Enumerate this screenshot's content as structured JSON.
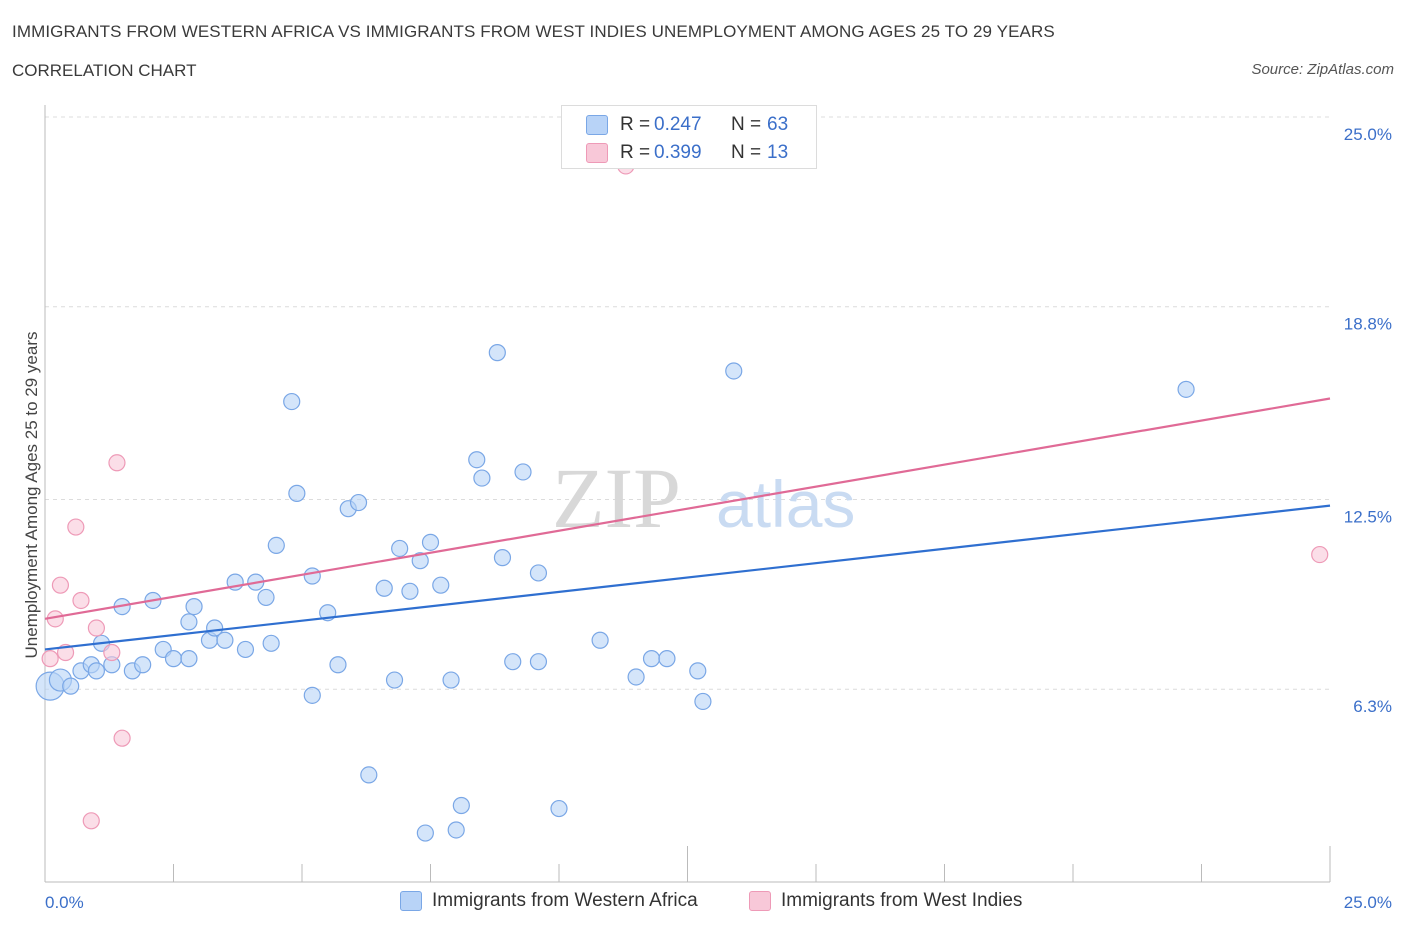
{
  "title": "IMMIGRANTS FROM WESTERN AFRICA VS IMMIGRANTS FROM WEST INDIES UNEMPLOYMENT AMONG AGES 25 TO 29 YEARS",
  "subtitle": "CORRELATION CHART",
  "source": "Source: ZipAtlas.com",
  "watermark": {
    "zip": "ZIP",
    "atlas": "atlas"
  },
  "legend": {
    "r_label": "R =",
    "n_label": "N =",
    "series": [
      {
        "name": "Immigrants from Western Africa",
        "r": "0.247",
        "n": "63"
      },
      {
        "name": "Immigrants from West Indies",
        "r": "0.399",
        "n": "13"
      }
    ]
  },
  "colors": {
    "blue_fill": "#b8d3f7",
    "blue_stroke": "#7aa7e6",
    "blue_line": "#2f6fd0",
    "pink_fill": "#f8c8d8",
    "pink_stroke": "#ee9ab7",
    "pink_line": "#e06a96",
    "tick_text": "#3b6fc9",
    "grid": "#dcdcdc"
  },
  "chart_data": {
    "type": "scatter",
    "title": "IMMIGRANTS FROM WESTERN AFRICA VS IMMIGRANTS FROM WEST INDIES UNEMPLOYMENT AMONG AGES 25 TO 29 YEARS",
    "xlabel": "",
    "ylabel": "Unemployment Among Ages 25 to 29 years",
    "xlim": [
      0,
      25
    ],
    "ylim": [
      0,
      25
    ],
    "x_tick_labels": [
      "0.0%",
      "25.0%"
    ],
    "y_ticks": [
      6.3,
      12.5,
      18.8,
      25.0
    ],
    "y_tick_labels": [
      "6.3%",
      "12.5%",
      "18.8%",
      "25.0%"
    ],
    "grid": true,
    "legend_position": "top-center",
    "series": [
      {
        "name": "Immigrants from Western Africa",
        "color": "#b8d3f7",
        "trend": {
          "x": [
            0,
            25
          ],
          "y": [
            7.6,
            12.3
          ]
        },
        "points": [
          {
            "x": 0.1,
            "y": 6.4,
            "size": 3
          },
          {
            "x": 0.3,
            "y": 6.6,
            "size": 2
          },
          {
            "x": 0.5,
            "y": 6.4,
            "size": 1
          },
          {
            "x": 0.7,
            "y": 6.9,
            "size": 1
          },
          {
            "x": 0.9,
            "y": 7.1,
            "size": 1
          },
          {
            "x": 1.0,
            "y": 6.9,
            "size": 1
          },
          {
            "x": 1.1,
            "y": 7.8,
            "size": 1
          },
          {
            "x": 1.3,
            "y": 7.1,
            "size": 1
          },
          {
            "x": 1.5,
            "y": 9.0,
            "size": 1
          },
          {
            "x": 1.7,
            "y": 6.9,
            "size": 1
          },
          {
            "x": 1.9,
            "y": 7.1,
            "size": 1
          },
          {
            "x": 2.1,
            "y": 9.2,
            "size": 1
          },
          {
            "x": 2.3,
            "y": 7.6,
            "size": 1
          },
          {
            "x": 2.5,
            "y": 7.3,
            "size": 1
          },
          {
            "x": 2.8,
            "y": 8.5,
            "size": 1
          },
          {
            "x": 2.8,
            "y": 7.3,
            "size": 1
          },
          {
            "x": 2.9,
            "y": 9.0,
            "size": 1
          },
          {
            "x": 3.2,
            "y": 7.9,
            "size": 1
          },
          {
            "x": 3.3,
            "y": 8.3,
            "size": 1
          },
          {
            "x": 3.5,
            "y": 7.9,
            "size": 1
          },
          {
            "x": 3.7,
            "y": 9.8,
            "size": 1
          },
          {
            "x": 3.9,
            "y": 7.6,
            "size": 1
          },
          {
            "x": 4.1,
            "y": 9.8,
            "size": 1
          },
          {
            "x": 4.3,
            "y": 9.3,
            "size": 1
          },
          {
            "x": 4.4,
            "y": 7.8,
            "size": 1
          },
          {
            "x": 4.5,
            "y": 11.0,
            "size": 1
          },
          {
            "x": 4.8,
            "y": 15.7,
            "size": 1
          },
          {
            "x": 4.9,
            "y": 12.7,
            "size": 1
          },
          {
            "x": 5.2,
            "y": 10.0,
            "size": 1
          },
          {
            "x": 5.2,
            "y": 6.1,
            "size": 1
          },
          {
            "x": 5.5,
            "y": 8.8,
            "size": 1
          },
          {
            "x": 5.7,
            "y": 7.1,
            "size": 1
          },
          {
            "x": 5.9,
            "y": 12.2,
            "size": 1
          },
          {
            "x": 6.1,
            "y": 12.4,
            "size": 1
          },
          {
            "x": 6.3,
            "y": 3.5,
            "size": 1
          },
          {
            "x": 6.6,
            "y": 9.6,
            "size": 1
          },
          {
            "x": 6.8,
            "y": 6.6,
            "size": 1
          },
          {
            "x": 6.9,
            "y": 10.9,
            "size": 1
          },
          {
            "x": 7.1,
            "y": 9.5,
            "size": 1
          },
          {
            "x": 7.3,
            "y": 10.5,
            "size": 1
          },
          {
            "x": 7.4,
            "y": 1.6,
            "size": 1
          },
          {
            "x": 7.5,
            "y": 11.1,
            "size": 1
          },
          {
            "x": 7.7,
            "y": 9.7,
            "size": 1
          },
          {
            "x": 7.9,
            "y": 6.6,
            "size": 1
          },
          {
            "x": 8.0,
            "y": 1.7,
            "size": 1
          },
          {
            "x": 8.1,
            "y": 2.5,
            "size": 1
          },
          {
            "x": 8.4,
            "y": 13.8,
            "size": 1
          },
          {
            "x": 8.5,
            "y": 13.2,
            "size": 1
          },
          {
            "x": 8.8,
            "y": 17.3,
            "size": 1
          },
          {
            "x": 8.9,
            "y": 10.6,
            "size": 1
          },
          {
            "x": 9.1,
            "y": 7.2,
            "size": 1
          },
          {
            "x": 9.3,
            "y": 13.4,
            "size": 1
          },
          {
            "x": 9.6,
            "y": 7.2,
            "size": 1
          },
          {
            "x": 9.6,
            "y": 10.1,
            "size": 1
          },
          {
            "x": 10.0,
            "y": 2.4,
            "size": 1
          },
          {
            "x": 10.8,
            "y": 7.9,
            "size": 1
          },
          {
            "x": 11.5,
            "y": 6.7,
            "size": 1
          },
          {
            "x": 11.8,
            "y": 7.3,
            "size": 1
          },
          {
            "x": 12.1,
            "y": 7.3,
            "size": 1
          },
          {
            "x": 12.7,
            "y": 6.9,
            "size": 1
          },
          {
            "x": 12.8,
            "y": 5.9,
            "size": 1
          },
          {
            "x": 13.4,
            "y": 16.7,
            "size": 1
          },
          {
            "x": 22.2,
            "y": 16.1,
            "size": 1
          }
        ]
      },
      {
        "name": "Immigrants from West Indies",
        "color": "#f8c8d8",
        "trend": {
          "x": [
            0,
            25
          ],
          "y": [
            8.6,
            15.8
          ]
        },
        "points": [
          {
            "x": 0.1,
            "y": 7.3,
            "size": 1
          },
          {
            "x": 0.2,
            "y": 8.6,
            "size": 1
          },
          {
            "x": 0.3,
            "y": 9.7,
            "size": 1
          },
          {
            "x": 0.4,
            "y": 7.5,
            "size": 1
          },
          {
            "x": 0.6,
            "y": 11.6,
            "size": 1
          },
          {
            "x": 0.7,
            "y": 9.2,
            "size": 1
          },
          {
            "x": 0.9,
            "y": 2.0,
            "size": 1
          },
          {
            "x": 1.0,
            "y": 8.3,
            "size": 1
          },
          {
            "x": 1.3,
            "y": 7.5,
            "size": 1
          },
          {
            "x": 1.4,
            "y": 13.7,
            "size": 1
          },
          {
            "x": 1.5,
            "y": 4.7,
            "size": 1
          },
          {
            "x": 11.3,
            "y": 23.4,
            "size": 1
          },
          {
            "x": 24.8,
            "y": 10.7,
            "size": 1
          }
        ]
      }
    ]
  }
}
